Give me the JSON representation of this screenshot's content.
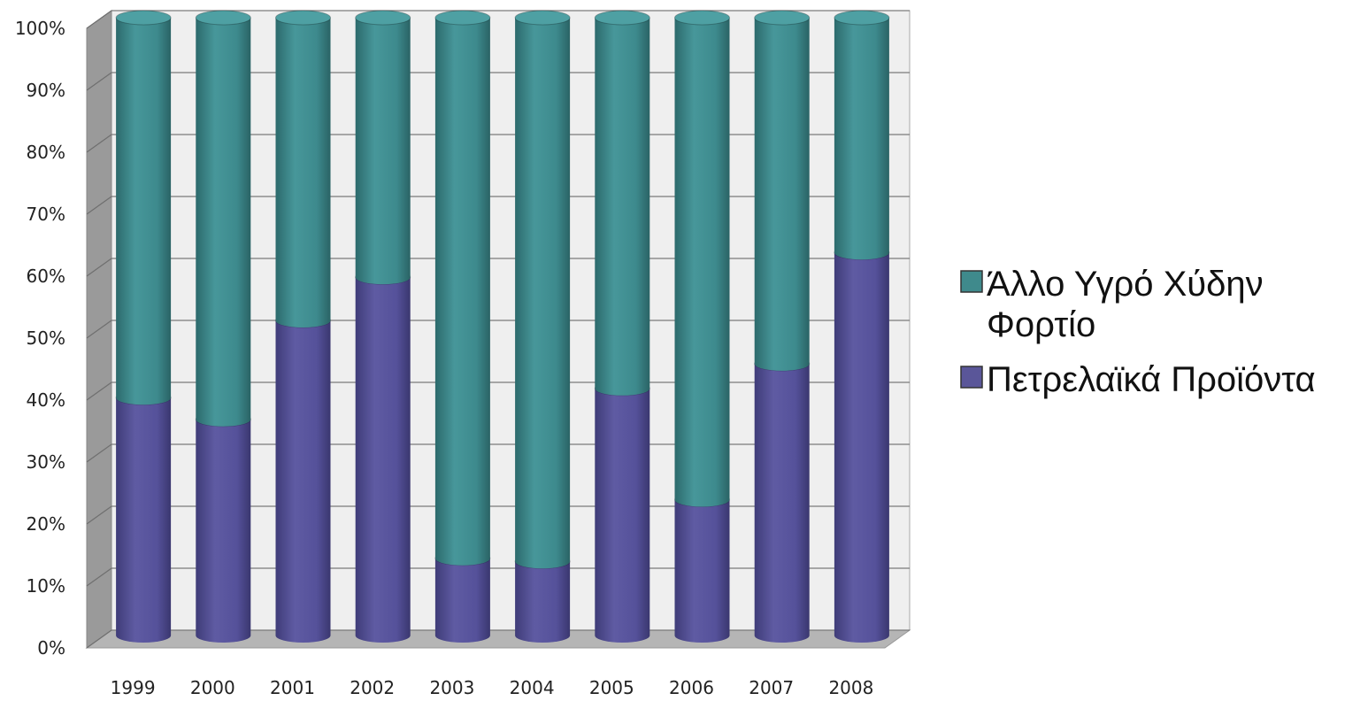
{
  "chart_data": {
    "type": "bar",
    "stacked": true,
    "percent": true,
    "style": "3d-cylinder",
    "title": "",
    "xlabel": "",
    "ylabel": "",
    "categories": [
      "1999",
      "2000",
      "2001",
      "2002",
      "2003",
      "2004",
      "2005",
      "2006",
      "2007",
      "2008"
    ],
    "series": [
      {
        "name": "Πετρελαϊκά Προϊόντα",
        "color": "#5a5699",
        "values": [
          38.5,
          35,
          51,
          58,
          12.5,
          12,
          40,
          22,
          44,
          62
        ]
      },
      {
        "name": "Άλλο Υγρό Χύδην Φορτίο",
        "color": "#3f8a8c",
        "values": [
          61.5,
          65,
          49,
          42,
          87.5,
          88,
          60,
          78,
          56,
          38
        ]
      }
    ],
    "ylim": [
      0,
      100
    ],
    "ytick_labels": [
      "0%",
      "10%",
      "20%",
      "30%",
      "40%",
      "50%",
      "60%",
      "70%",
      "80%",
      "90%",
      "100%"
    ],
    "grid": true,
    "legend": {
      "position": "right",
      "entries": [
        {
          "lines": [
            "Άλλο Υγρό Χύδην",
            "Φορτίο"
          ],
          "color": "#3f8a8c"
        },
        {
          "lines": [
            "Πετρελαϊκά Προϊόντα"
          ],
          "color": "#5a5699"
        }
      ]
    }
  }
}
